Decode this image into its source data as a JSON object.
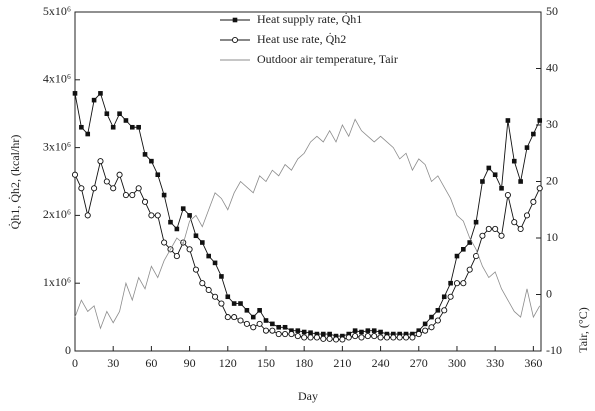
{
  "chart_data": {
    "type": "line",
    "xlabel": "Day",
    "ylabel": "Q̇h1, Q̇h2, (kcal/hr)",
    "y2label": "Tair, (°C)",
    "x": [
      0,
      5,
      10,
      15,
      20,
      25,
      30,
      35,
      40,
      45,
      50,
      55,
      60,
      65,
      70,
      75,
      80,
      85,
      90,
      95,
      100,
      105,
      110,
      115,
      120,
      125,
      130,
      135,
      140,
      145,
      150,
      155,
      160,
      165,
      170,
      175,
      180,
      185,
      190,
      195,
      200,
      205,
      210,
      215,
      220,
      225,
      230,
      235,
      240,
      245,
      250,
      255,
      260,
      265,
      270,
      275,
      280,
      285,
      290,
      295,
      300,
      305,
      310,
      315,
      320,
      325,
      330,
      335,
      340,
      345,
      350,
      355,
      360,
      365
    ],
    "series": [
      {
        "name": "Heat supply rate, Q̇h1",
        "color": "#111111",
        "marker": "square",
        "values": [
          3800000,
          3300000,
          3200000,
          3700000,
          3800000,
          3500000,
          3300000,
          3500000,
          3400000,
          3300000,
          3300000,
          2900000,
          2800000,
          2600000,
          2300000,
          1900000,
          1800000,
          2100000,
          2000000,
          1700000,
          1600000,
          1400000,
          1300000,
          1100000,
          800000,
          700000,
          700000,
          600000,
          500000,
          600000,
          450000,
          400000,
          350000,
          350000,
          300000,
          300000,
          280000,
          270000,
          250000,
          250000,
          250000,
          220000,
          220000,
          250000,
          300000,
          280000,
          300000,
          300000,
          280000,
          250000,
          250000,
          250000,
          250000,
          250000,
          300000,
          400000,
          500000,
          600000,
          800000,
          1000000,
          1400000,
          1500000,
          1600000,
          1900000,
          2500000,
          2700000,
          2600000,
          2400000,
          3400000,
          2800000,
          2500000,
          3000000,
          3200000,
          3400000
        ]
      },
      {
        "name": "Heat use rate, Q̇h2",
        "color": "#111111",
        "marker": "circle",
        "values": [
          2600000,
          2400000,
          2000000,
          2400000,
          2800000,
          2500000,
          2400000,
          2600000,
          2300000,
          2300000,
          2400000,
          2200000,
          2000000,
          2000000,
          1600000,
          1500000,
          1400000,
          1600000,
          1500000,
          1200000,
          1000000,
          900000,
          800000,
          700000,
          500000,
          500000,
          450000,
          400000,
          350000,
          400000,
          300000,
          300000,
          250000,
          250000,
          250000,
          220000,
          200000,
          200000,
          200000,
          180000,
          180000,
          170000,
          170000,
          200000,
          220000,
          200000,
          220000,
          220000,
          200000,
          200000,
          200000,
          200000,
          200000,
          200000,
          250000,
          300000,
          350000,
          450000,
          600000,
          800000,
          1000000,
          1000000,
          1200000,
          1400000,
          1700000,
          1800000,
          1800000,
          1700000,
          2300000,
          1900000,
          1800000,
          2000000,
          2200000,
          2400000
        ]
      },
      {
        "name": "Outdoor air temperature, Tair",
        "color": "#8c8c8c",
        "axis": "y2",
        "values": [
          -4,
          -1,
          -3,
          -2,
          -6,
          -3,
          -5,
          -3,
          2,
          -1,
          3,
          1,
          5,
          3,
          6,
          8,
          10,
          9,
          13,
          14,
          12,
          15,
          18,
          17,
          15,
          18,
          20,
          19,
          18,
          21,
          20,
          22,
          21,
          23,
          22,
          24,
          25,
          27,
          28,
          27,
          29,
          27,
          30,
          28,
          31,
          29,
          28,
          27,
          28,
          27,
          26,
          24,
          25,
          22,
          24,
          23,
          20,
          21,
          19,
          17,
          14,
          13,
          10,
          8,
          5,
          3,
          4,
          1,
          -1,
          -3,
          -4,
          1,
          -4,
          -2
        ]
      }
    ],
    "xlim": [
      0,
      366
    ],
    "xticks": [
      0,
      30,
      60,
      90,
      120,
      150,
      180,
      210,
      240,
      270,
      300,
      330,
      360
    ],
    "ylim": [
      0,
      5000000
    ],
    "yticks": [
      0,
      {
        "value": 1000000,
        "label": "1x10⁶"
      },
      {
        "value": 2000000,
        "label": "2x10⁶"
      },
      {
        "value": 3000000,
        "label": "3x10⁶"
      },
      {
        "value": 4000000,
        "label": "4x10⁶"
      },
      {
        "value": 5000000,
        "label": "5x10⁶"
      }
    ],
    "y2lim": [
      -10,
      50
    ],
    "y2ticks": [
      -10,
      0,
      10,
      20,
      30,
      40,
      50
    ],
    "legend": "top"
  }
}
